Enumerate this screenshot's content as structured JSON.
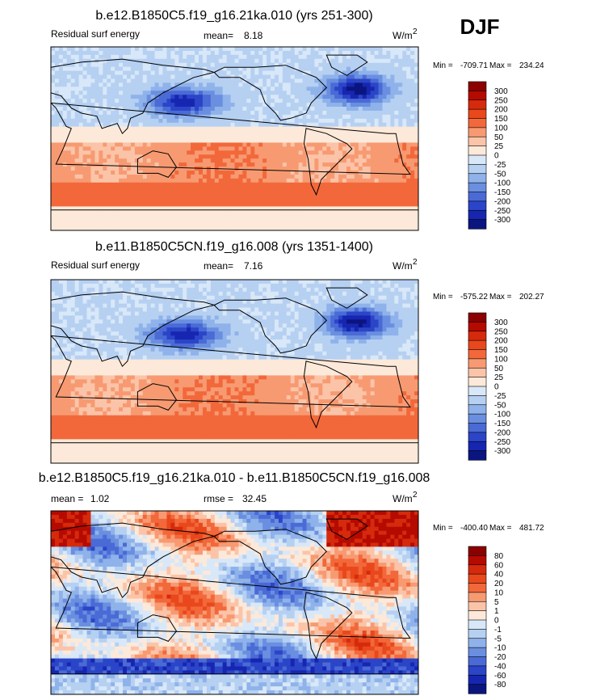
{
  "season_label": "DJF",
  "chart_data": [
    {
      "type": "heatmap",
      "title": "b.e12.B1850C5.f19_g16.21ka.010 (yrs 251-300)",
      "left_label": "Residual surf energy",
      "mean_label": "mean=",
      "mean": "8.18",
      "units": "W/m",
      "units_exp": "2",
      "min_label": "Min =",
      "min": "-709.71",
      "max_label": "Max =",
      "max": "234.24",
      "colorbar": {
        "levels": [
          "300",
          "250",
          "200",
          "150",
          "100",
          "50",
          "25",
          "0",
          "-25",
          "-50",
          "-100",
          "-150",
          "-200",
          "-250",
          "-300"
        ],
        "colors": [
          "#8b0000",
          "#b50a00",
          "#d62a0d",
          "#e9481c",
          "#f2683a",
          "#f79a72",
          "#fbc4a8",
          "#fde9d9",
          "#d8e8f8",
          "#b6d0f2",
          "#8fb2ea",
          "#6a8fe0",
          "#4a6ad6",
          "#2b45c8",
          "#1726b0",
          "#0a1580"
        ]
      }
    },
    {
      "type": "heatmap",
      "title": "b.e11.B1850C5CN.f19_g16.008 (yrs 1351-1400)",
      "left_label": "Residual surf energy",
      "mean_label": "mean=",
      "mean": "7.16",
      "units": "W/m",
      "units_exp": "2",
      "min_label": "Min =",
      "min": "-575.22",
      "max_label": "Max =",
      "max": "202.27",
      "colorbar": {
        "levels": [
          "300",
          "250",
          "200",
          "150",
          "100",
          "50",
          "25",
          "0",
          "-25",
          "-50",
          "-100",
          "-150",
          "-200",
          "-250",
          "-300"
        ],
        "colors": [
          "#8b0000",
          "#b50a00",
          "#d62a0d",
          "#e9481c",
          "#f2683a",
          "#f79a72",
          "#fbc4a8",
          "#fde9d9",
          "#d8e8f8",
          "#b6d0f2",
          "#8fb2ea",
          "#6a8fe0",
          "#4a6ad6",
          "#2b45c8",
          "#1726b0",
          "#0a1580"
        ]
      }
    },
    {
      "type": "heatmap",
      "title": "b.e12.B1850C5.f19_g16.21ka.010 - b.e11.B1850C5CN.f19_g16.008",
      "mean_label": "mean =",
      "mean": "1.02",
      "rmse_label": "rmse =",
      "rmse": "32.45",
      "units": "W/m",
      "units_exp": "2",
      "min_label": "Min =",
      "min": "-400.40",
      "max_label": "Max =",
      "max": "481.72",
      "colorbar": {
        "levels": [
          "80",
          "60",
          "40",
          "20",
          "10",
          "5",
          "1",
          "0",
          "-1",
          "-5",
          "-10",
          "-20",
          "-40",
          "-60",
          "-80"
        ],
        "colors": [
          "#8b0000",
          "#b50a00",
          "#d62a0d",
          "#e9481c",
          "#f2683a",
          "#f79a72",
          "#fbc4a8",
          "#fde9d9",
          "#d8e8f8",
          "#b6d0f2",
          "#8fb2ea",
          "#6a8fe0",
          "#4a6ad6",
          "#2b45c8",
          "#1726b0",
          "#0a1580"
        ]
      }
    }
  ]
}
